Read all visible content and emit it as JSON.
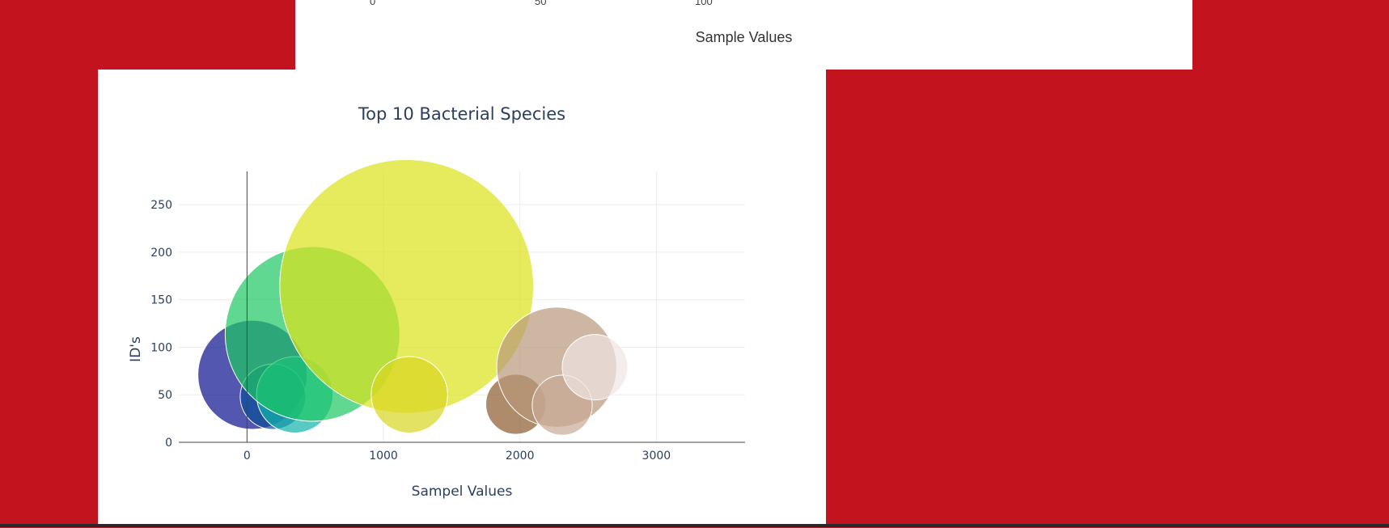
{
  "top_chart": {
    "xlabel": "Sample Values",
    "tick_labels": [
      "0",
      "50",
      "100"
    ]
  },
  "colors": {
    "page_background": "#c2131f",
    "panel_background": "#ffffff",
    "grid": "#ececec",
    "axis": "#444444",
    "text": "#2a3f5f"
  },
  "chart_data": {
    "type": "scatter",
    "marker": "bubble",
    "title": "Top 10 Bacterial Species",
    "xlabel": "Sampel Values",
    "ylabel": "ID's",
    "xlim": [
      -500,
      3650
    ],
    "ylim": [
      0,
      285
    ],
    "xticks": [
      0,
      1000,
      2000,
      3000
    ],
    "yticks": [
      0,
      50,
      100,
      150,
      200,
      250
    ],
    "grid": true,
    "legend": "none",
    "colorscale": "Earth",
    "points": [
      {
        "x": 40,
        "y": 71,
        "size": 40,
        "color": "#0a0f8f"
      },
      {
        "x": 190,
        "y": 48,
        "size": 24,
        "color": "#0b4f99"
      },
      {
        "x": 350,
        "y": 50,
        "size": 28,
        "color": "#10b3aa"
      },
      {
        "x": 480,
        "y": 114,
        "size": 64,
        "color": "#1ec863"
      },
      {
        "x": 1170,
        "y": 164,
        "size": 93,
        "color": "#dce21a"
      },
      {
        "x": 1190,
        "y": 50,
        "size": 28,
        "color": "#d8d51f"
      },
      {
        "x": 1970,
        "y": 40,
        "size": 22,
        "color": "#8b5a2b"
      },
      {
        "x": 2270,
        "y": 79,
        "size": 44,
        "color": "#b8977a"
      },
      {
        "x": 2310,
        "y": 39,
        "size": 22,
        "color": "#c9aa96"
      },
      {
        "x": 2550,
        "y": 79,
        "size": 24,
        "color": "#efe6e3"
      }
    ]
  }
}
